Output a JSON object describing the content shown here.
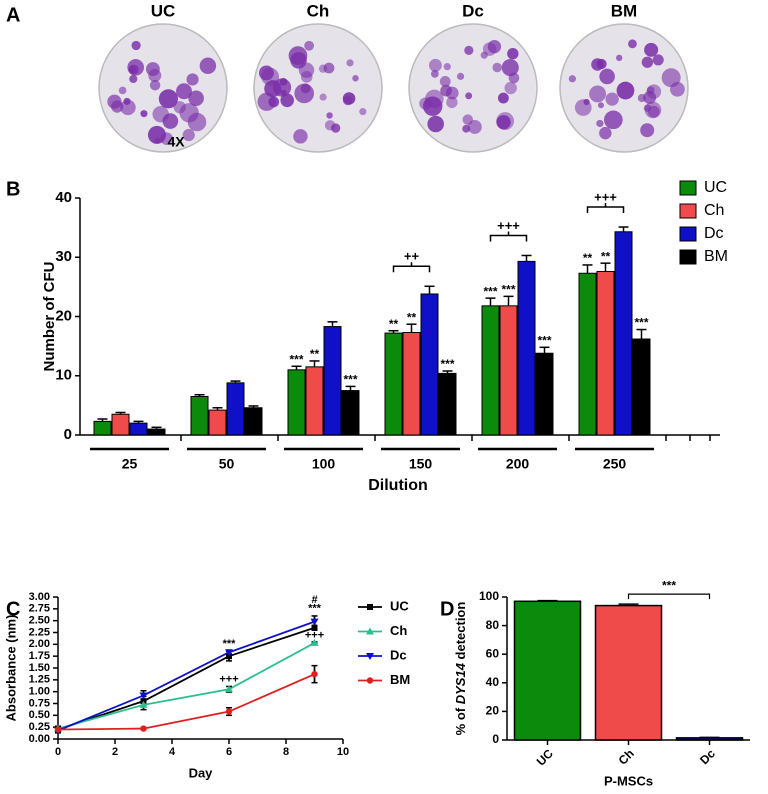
{
  "panel_labels": [
    "A",
    "B",
    "C",
    "D"
  ],
  "images": {
    "labels": [
      "UC",
      "Ch",
      "Dc",
      "BM"
    ],
    "magnification": "4X"
  },
  "chart_data": [
    {
      "type": "bar",
      "xlabel": "Dilution",
      "ylabel": "Number of CFU",
      "categories": [
        "25",
        "50",
        "100",
        "150",
        "200",
        "250"
      ],
      "ylim": [
        0,
        40
      ],
      "yticks": [
        0,
        10,
        20,
        30,
        40
      ],
      "grid": false,
      "legend": "right",
      "series": [
        {
          "name": "UC",
          "color": "#0b8a0b",
          "values": [
            2.3,
            6.5,
            11,
            17.2,
            21.8,
            27.3
          ],
          "errors": [
            0.4,
            0.3,
            0.6,
            0.4,
            1.3,
            1.4
          ],
          "stars": [
            null,
            null,
            "***",
            "**",
            "***",
            "**"
          ]
        },
        {
          "name": "Ch",
          "color": "#f04b4b",
          "values": [
            3.5,
            4.2,
            11.5,
            17.3,
            21.8,
            27.6
          ],
          "errors": [
            0.3,
            0.4,
            1.0,
            1.4,
            1.6,
            1.4
          ],
          "stars": [
            null,
            null,
            "**",
            "**",
            "***",
            "**"
          ]
        },
        {
          "name": "Dc",
          "color": "#1010c8",
          "values": [
            2.0,
            8.8,
            18.3,
            23.8,
            29.3,
            34.3
          ],
          "errors": [
            0.3,
            0.3,
            0.8,
            1.3,
            1.0,
            0.8
          ],
          "stars": [
            null,
            null,
            null,
            null,
            null,
            null
          ]
        },
        {
          "name": "BM",
          "color": "#000000",
          "values": [
            1.0,
            4.6,
            7.5,
            10.4,
            13.8,
            16.2
          ],
          "errors": [
            0.3,
            0.3,
            0.7,
            0.4,
            1.0,
            1.6
          ],
          "stars": [
            null,
            null,
            "***",
            "***",
            "***",
            "***"
          ]
        }
      ],
      "brackets": [
        {
          "category": "150",
          "label": "++"
        },
        {
          "category": "200",
          "label": "+++"
        },
        {
          "category": "250",
          "label": "+++"
        }
      ]
    },
    {
      "type": "line",
      "xlabel": "Day",
      "ylabel": "Absorbance (nm)",
      "x": [
        0,
        3,
        6,
        9
      ],
      "xlim": [
        0,
        10
      ],
      "xticks": [
        0,
        2,
        4,
        6,
        8,
        10
      ],
      "ylim": [
        0,
        3
      ],
      "yticks": [
        {
          "value": 0,
          "label": "0.00"
        },
        {
          "value": 0.25,
          "label": "0.25"
        },
        {
          "value": 0.5,
          "label": "0.50"
        },
        {
          "value": 0.75,
          "label": "0.75"
        },
        {
          "value": 1,
          "label": "1.00"
        },
        {
          "value": 1.25,
          "label": "1.25"
        },
        {
          "value": 1.5,
          "label": "1.50"
        },
        {
          "value": 1.75,
          "label": "1.75"
        },
        {
          "value": 2,
          "label": "2.00"
        },
        {
          "value": 2.25,
          "label": "2.25"
        },
        {
          "value": 2.5,
          "label": "2.50"
        },
        {
          "value": 2.75,
          "label": "2.75"
        },
        {
          "value": 3,
          "label": "3.00"
        }
      ],
      "grid": false,
      "legend": "right",
      "series": [
        {
          "name": "UC",
          "color": "#000000",
          "marker": "square",
          "values": [
            0.2,
            0.8,
            1.75,
            2.35
          ],
          "errors": [
            0.05,
            0.1,
            0.1,
            0.05
          ]
        },
        {
          "name": "Ch",
          "color": "#2bbf8e",
          "marker": "triangle-up",
          "values": [
            0.22,
            0.72,
            1.05,
            2.03
          ],
          "errors": [
            0.05,
            0.1,
            0.06,
            0.02
          ]
        },
        {
          "name": "Dc",
          "color": "#1010c8",
          "marker": "triangle-down",
          "values": [
            0.18,
            0.92,
            1.83,
            2.48
          ],
          "errors": [
            0.05,
            0.1,
            0.05,
            0.12
          ]
        },
        {
          "name": "BM",
          "color": "#e02020",
          "marker": "circle",
          "values": [
            0.2,
            0.22,
            0.58,
            1.37
          ],
          "errors": [
            0.02,
            0.02,
            0.08,
            0.18
          ]
        }
      ],
      "annotations": [
        {
          "x": 6,
          "y": 2.0,
          "label": "***"
        },
        {
          "x": 6,
          "y": 1.25,
          "label": "+++"
        },
        {
          "x": 9,
          "y": 2.93,
          "label": "#"
        },
        {
          "x": 9,
          "y": 2.76,
          "label": "***"
        },
        {
          "x": 9,
          "y": 2.18,
          "label": "+++"
        }
      ]
    },
    {
      "type": "bar",
      "xlabel": "P-MSCs",
      "ylabel": [
        "% of ",
        "DYS14",
        " detection"
      ],
      "categories": [
        "UC",
        "Ch",
        "Dc"
      ],
      "values": [
        97,
        94,
        1.5
      ],
      "errors": [
        0.5,
        1.0,
        0.3
      ],
      "colors": [
        "#0b8a0b",
        "#f04b4b",
        "#1010c8"
      ],
      "ylim": [
        0,
        100
      ],
      "yticks": [
        0,
        20,
        40,
        60,
        80,
        100
      ],
      "grid": false,
      "brackets": [
        {
          "from": "Ch",
          "to": "Dc",
          "label": "***"
        }
      ]
    }
  ]
}
